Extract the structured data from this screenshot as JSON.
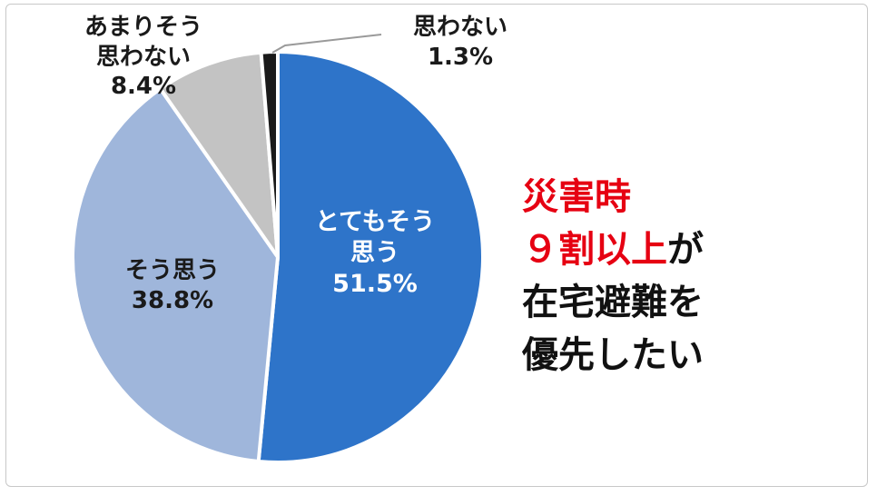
{
  "chart_data": {
    "type": "pie",
    "slices": [
      {
        "name": "とてもそう思う",
        "value": 51.5,
        "label_line1": "とてもそう",
        "label_line2": "思う",
        "value_text": "51.5%",
        "color": "#2e74c9"
      },
      {
        "name": "そう思う",
        "value": 38.8,
        "label_line1": "そう思う",
        "value_text": "38.8%",
        "color": "#9fb6db"
      },
      {
        "name": "あまりそう思わない",
        "value": 8.4,
        "label_line1": "あまりそう",
        "label_line2": "思わない",
        "value_text": "8.4%",
        "color": "#c3c3c3"
      },
      {
        "name": "思わない",
        "value": 1.3,
        "label_line1": "思わない",
        "value_text": "1.3%",
        "color": "#1a1a1a"
      }
    ],
    "start_direction": "top",
    "direction": "clockwise"
  },
  "headline": {
    "line1": "災害時",
    "line2_red": "９割以上",
    "line2_black": "が",
    "line3": "在宅避難を",
    "line4": "優先したい",
    "accent_color": "#e60012"
  }
}
